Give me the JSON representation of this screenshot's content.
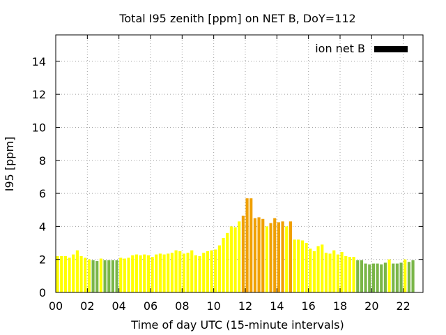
{
  "chart_data": {
    "type": "bar",
    "title": "Total I95 zenith [ppm] on NET B, DoY=112",
    "xlabel": "Time of day UTC (15-minute intervals)",
    "ylabel": "I95 [ppm]",
    "legend": {
      "label": "ion net B",
      "placement": "top-right",
      "swatch_color": "#000000"
    },
    "xlim": [
      0,
      23.25
    ],
    "ylim": [
      0,
      15.6
    ],
    "xticks": [
      0,
      2,
      4,
      6,
      8,
      10,
      12,
      14,
      16,
      18,
      20,
      22
    ],
    "xtick_labels": [
      "00",
      "02",
      "04",
      "06",
      "08",
      "10",
      "12",
      "14",
      "16",
      "18",
      "20",
      "22"
    ],
    "yticks": [
      0,
      2,
      4,
      6,
      8,
      10,
      12,
      14
    ],
    "ytick_labels": [
      "0",
      "2",
      "4",
      "6",
      "8",
      "10",
      "12",
      "14"
    ],
    "grid": true,
    "bar_interval_hours": 0.25,
    "level_colors": {
      "green": "#7ab648",
      "yellow": "#ffff00",
      "orange": "#f0a000"
    },
    "values": [
      2.2,
      2.2,
      2.2,
      2.1,
      2.3,
      2.55,
      2.2,
      2.1,
      2.0,
      1.95,
      1.9,
      2.05,
      1.95,
      1.95,
      1.95,
      1.95,
      2.1,
      2.05,
      2.1,
      2.25,
      2.3,
      2.25,
      2.3,
      2.25,
      2.15,
      2.3,
      2.35,
      2.3,
      2.35,
      2.4,
      2.55,
      2.5,
      2.35,
      2.4,
      2.55,
      2.25,
      2.2,
      2.4,
      2.5,
      2.55,
      2.6,
      2.85,
      3.3,
      3.6,
      4.0,
      3.95,
      4.3,
      4.65,
      5.7,
      5.7,
      4.5,
      4.55,
      4.45,
      4.0,
      4.2,
      4.5,
      4.25,
      4.3,
      4.0,
      4.3,
      3.2,
      3.2,
      3.15,
      3.0,
      2.65,
      2.5,
      2.8,
      2.9,
      2.4,
      2.35,
      2.55,
      2.3,
      2.45,
      2.2,
      2.15,
      2.15,
      1.95,
      1.95,
      1.75,
      1.7,
      1.75,
      1.75,
      1.7,
      1.8,
      2.0,
      1.75,
      1.75,
      1.8,
      2.0,
      1.85,
      1.95
    ],
    "levels": [
      "yellow",
      "yellow",
      "yellow",
      "yellow",
      "yellow",
      "yellow",
      "yellow",
      "yellow",
      "yellow",
      "green",
      "green",
      "yellow",
      "green",
      "green",
      "green",
      "green",
      "yellow",
      "yellow",
      "yellow",
      "yellow",
      "yellow",
      "yellow",
      "yellow",
      "yellow",
      "yellow",
      "yellow",
      "yellow",
      "yellow",
      "yellow",
      "yellow",
      "yellow",
      "yellow",
      "yellow",
      "yellow",
      "yellow",
      "yellow",
      "yellow",
      "yellow",
      "yellow",
      "yellow",
      "yellow",
      "yellow",
      "yellow",
      "yellow",
      "yellow",
      "yellow",
      "yellow",
      "orange",
      "orange",
      "orange",
      "orange",
      "orange",
      "orange",
      "yellow",
      "orange",
      "orange",
      "orange",
      "orange",
      "yellow",
      "orange",
      "yellow",
      "yellow",
      "yellow",
      "yellow",
      "yellow",
      "yellow",
      "yellow",
      "yellow",
      "yellow",
      "yellow",
      "yellow",
      "yellow",
      "yellow",
      "yellow",
      "yellow",
      "yellow",
      "green",
      "green",
      "green",
      "green",
      "green",
      "green",
      "green",
      "green",
      "yellow",
      "green",
      "green",
      "green",
      "yellow",
      "green",
      "green"
    ]
  }
}
